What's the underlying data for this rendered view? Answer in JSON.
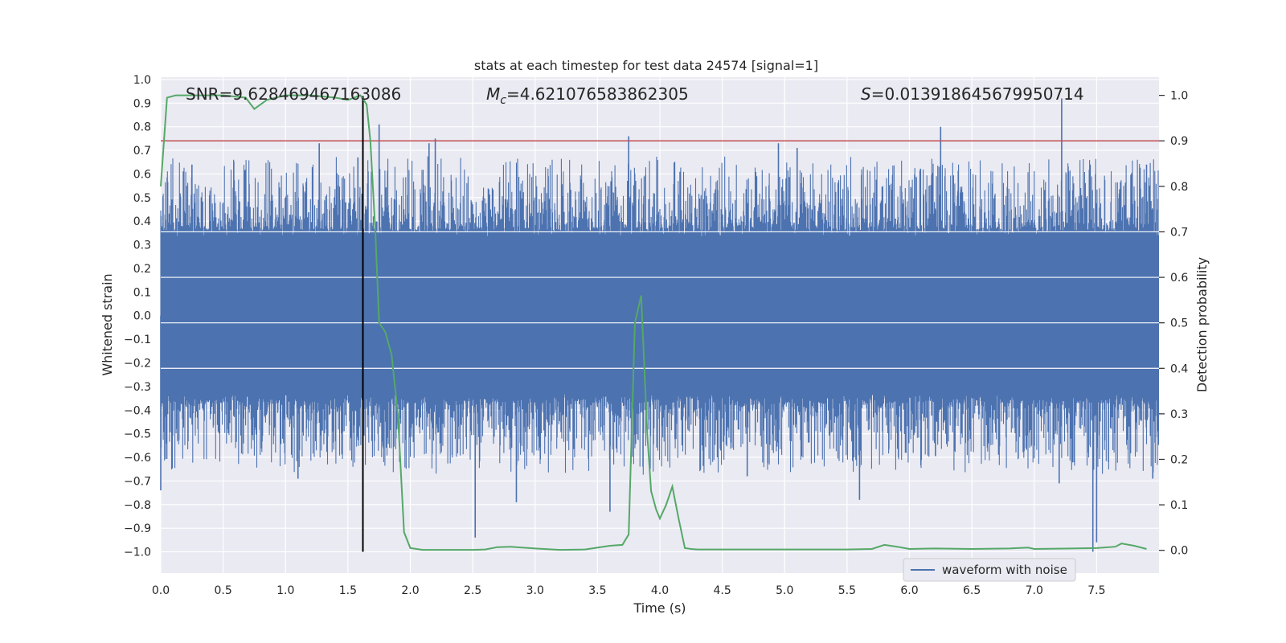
{
  "chart_data": {
    "type": "line",
    "title": "stats at each timestep for test data 24574 [signal=1]",
    "xlabel": "Time (s)",
    "ylabel_left": "Whitened strain",
    "ylabel_right": "Detection probability",
    "xlim": [
      0.0,
      8.0
    ],
    "ylim_left": [
      -1.09,
      1.01
    ],
    "ylim_right": [
      -0.05,
      1.04
    ],
    "x_ticks": [
      "0.0",
      "0.5",
      "1.0",
      "1.5",
      "2.0",
      "2.5",
      "3.0",
      "3.5",
      "4.0",
      "4.5",
      "5.0",
      "5.5",
      "6.0",
      "6.5",
      "7.0",
      "7.5"
    ],
    "x_tick_values": [
      0.0,
      0.5,
      1.0,
      1.5,
      2.0,
      2.5,
      3.0,
      3.5,
      4.0,
      4.5,
      5.0,
      5.5,
      6.0,
      6.5,
      7.0,
      7.5
    ],
    "y_left_ticks": [
      "1.0",
      "0.9",
      "0.8",
      "0.7",
      "0.6",
      "0.5",
      "0.4",
      "0.3",
      "0.2",
      "0.1",
      "0.0",
      "−0.1",
      "−0.2",
      "−0.3",
      "−0.4",
      "−0.5",
      "−0.6",
      "−0.7",
      "−0.8",
      "−0.9",
      "−1.0"
    ],
    "y_left_tick_values": [
      1.0,
      0.9,
      0.8,
      0.7,
      0.6,
      0.5,
      0.4,
      0.3,
      0.2,
      0.1,
      0.0,
      -0.1,
      -0.2,
      -0.3,
      -0.4,
      -0.5,
      -0.6,
      -0.7,
      -0.8,
      -0.9,
      -1.0
    ],
    "y_right_ticks": [
      "1.0",
      "0.9",
      "0.8",
      "0.7",
      "0.6",
      "0.5",
      "0.4",
      "0.3",
      "0.2",
      "0.1",
      "0.0"
    ],
    "y_right_tick_values": [
      1.0,
      0.9,
      0.8,
      0.7,
      0.6,
      0.5,
      0.4,
      0.3,
      0.2,
      0.1,
      0.0
    ],
    "annotations": {
      "snr": "SNR=9.628469467163086",
      "mc_symbol": "M",
      "mc_sub": "c",
      "mc_value": "=4.621076583862305",
      "s_symbol": "S",
      "s_value": "=0.013918645679950714"
    },
    "legend": {
      "label": "waveform with noise",
      "position": "lower-center-right"
    },
    "threshold": {
      "value": 0.9,
      "axis": "right"
    },
    "vline": {
      "x": 1.62,
      "y_range": [
        -1.0,
        0.93
      ]
    },
    "waveform": {
      "name": "waveform with noise",
      "core_amplitude": 0.33,
      "typical_amplitude": 0.55,
      "peaks": [
        {
          "x": 0.25,
          "y": 0.64
        },
        {
          "x": 1.27,
          "y": 0.73
        },
        {
          "x": 1.58,
          "y": 0.67
        },
        {
          "x": 1.75,
          "y": 0.81
        },
        {
          "x": 2.15,
          "y": 0.73
        },
        {
          "x": 2.2,
          "y": 0.75
        },
        {
          "x": 3.75,
          "y": 0.76
        },
        {
          "x": 4.95,
          "y": 0.73
        },
        {
          "x": 5.1,
          "y": 0.71
        },
        {
          "x": 6.25,
          "y": 0.8
        },
        {
          "x": 7.22,
          "y": 0.92
        },
        {
          "x": 7.9,
          "y": 0.64
        },
        {
          "x": 0.0,
          "y": -0.74
        },
        {
          "x": 1.1,
          "y": -0.69
        },
        {
          "x": 2.52,
          "y": -0.94
        },
        {
          "x": 2.85,
          "y": -0.79
        },
        {
          "x": 3.6,
          "y": -0.83
        },
        {
          "x": 4.7,
          "y": -0.68
        },
        {
          "x": 5.6,
          "y": -0.78
        },
        {
          "x": 7.2,
          "y": -0.71
        },
        {
          "x": 7.47,
          "y": -1.0
        },
        {
          "x": 7.5,
          "y": -0.96
        },
        {
          "x": 7.95,
          "y": -0.69
        }
      ]
    },
    "probability": {
      "x": [
        0.0,
        0.05,
        0.12,
        0.25,
        0.5,
        0.68,
        0.75,
        0.85,
        1.0,
        1.2,
        1.4,
        1.5,
        1.6,
        1.65,
        1.68,
        1.72,
        1.75,
        1.8,
        1.85,
        1.9,
        1.95,
        2.0,
        2.1,
        2.3,
        2.5,
        2.6,
        2.7,
        2.8,
        3.0,
        3.2,
        3.4,
        3.6,
        3.7,
        3.75,
        3.8,
        3.85,
        3.9,
        3.93,
        3.97,
        4.0,
        4.05,
        4.1,
        4.15,
        4.2,
        4.25,
        4.3,
        4.5,
        5.0,
        5.5,
        5.7,
        5.8,
        5.9,
        6.0,
        6.2,
        6.5,
        6.8,
        6.95,
        7.0,
        7.3,
        7.5,
        7.65,
        7.7,
        7.8,
        7.9
      ],
      "y": [
        0.8,
        0.995,
        1.0,
        1.0,
        1.0,
        0.995,
        0.97,
        0.99,
        1.0,
        1.0,
        0.995,
        0.99,
        1.0,
        0.98,
        0.9,
        0.7,
        0.5,
        0.48,
        0.43,
        0.3,
        0.04,
        0.005,
        0.001,
        0.001,
        0.001,
        0.002,
        0.007,
        0.008,
        0.004,
        0.001,
        0.002,
        0.01,
        0.012,
        0.035,
        0.5,
        0.56,
        0.25,
        0.13,
        0.09,
        0.07,
        0.1,
        0.14,
        0.07,
        0.005,
        0.003,
        0.002,
        0.002,
        0.002,
        0.002,
        0.003,
        0.012,
        0.008,
        0.003,
        0.004,
        0.003,
        0.004,
        0.006,
        0.003,
        0.004,
        0.005,
        0.008,
        0.015,
        0.01,
        0.003
      ]
    }
  }
}
